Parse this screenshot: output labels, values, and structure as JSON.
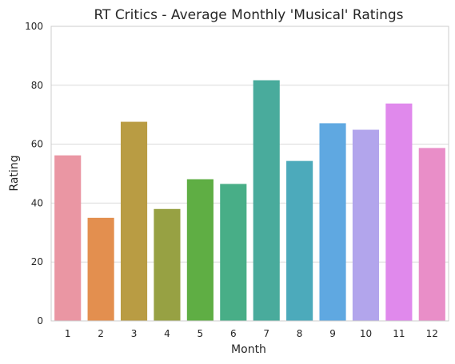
{
  "chart_data": {
    "type": "bar",
    "title": "RT Critics - Average Monthly 'Musical' Ratings",
    "xlabel": "Month",
    "ylabel": "Rating",
    "categories": [
      "1",
      "2",
      "3",
      "4",
      "5",
      "6",
      "7",
      "8",
      "9",
      "10",
      "11",
      "12"
    ],
    "values": [
      56.2,
      35.0,
      67.6,
      38.0,
      48.1,
      46.5,
      81.7,
      54.3,
      67.1,
      64.9,
      73.8,
      58.7
    ],
    "colors": [
      "#ea96a3",
      "#e38f4f",
      "#b99c43",
      "#97a143",
      "#5fae44",
      "#48ae87",
      "#49ab9c",
      "#4caabb",
      "#5fa8e1",
      "#b2a5ec",
      "#e089ec",
      "#e98ec8"
    ],
    "ylim": [
      0,
      100
    ],
    "yticks": [
      0,
      20,
      40,
      60,
      80,
      100
    ],
    "grid": "horizontal",
    "legend": "none"
  }
}
